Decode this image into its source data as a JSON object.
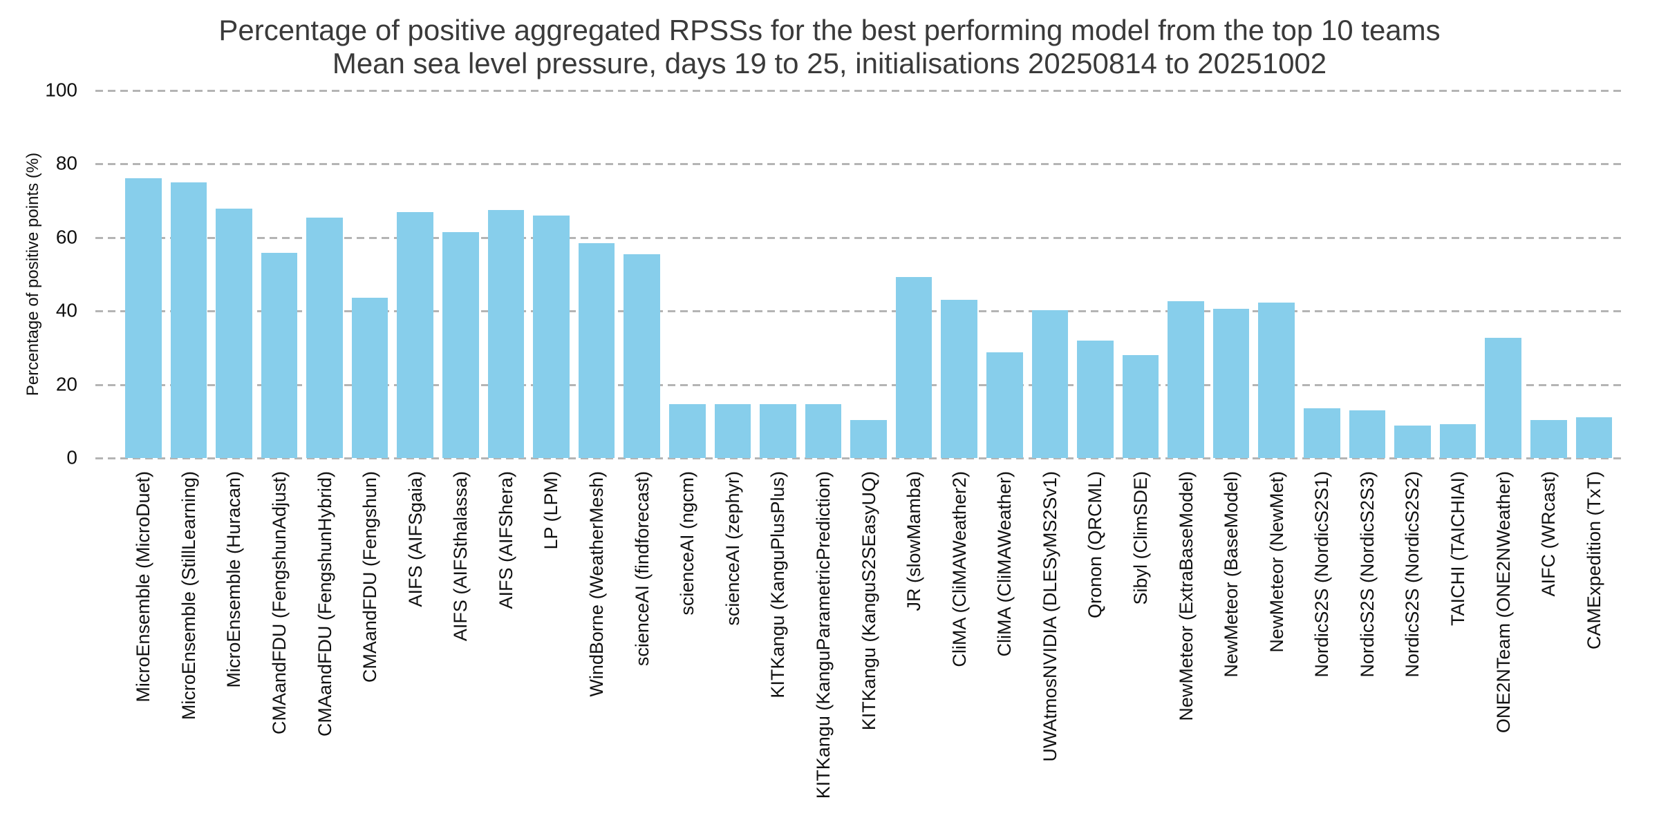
{
  "title": {
    "line1": "Percentage of positive aggregated RPSSs for the best performing model from the top 10 teams",
    "line2": "Mean sea level pressure, days 19 to 25, initialisations 20250814 to 20251002"
  },
  "colors": {
    "bar": "#87ceeb",
    "grid": "#b4b4b4",
    "title_text": "#3a3a3a",
    "axis_text": "#111111",
    "background": "#ffffff"
  },
  "chart_data": {
    "type": "bar",
    "title": "Percentage of positive aggregated RPSSs for the best performing model from the top 10 teams",
    "subtitle": "Mean sea level pressure, days 19 to 25, initialisations 20250814 to 20251002",
    "xlabel": "",
    "ylabel": "Percentage of positive points (%)",
    "ylim": [
      0,
      100
    ],
    "yticks": [
      0,
      20,
      40,
      60,
      80,
      100
    ],
    "grid": "horizontal-dashed",
    "legend": "none",
    "bar_color": "#87ceeb",
    "categories": [
      "MicroEnsemble (MicroDuet)",
      "MicroEnsemble (StillLearning)",
      "MicroEnsemble (Huracan)",
      "CMAandFDU (FengshunAdjust)",
      "CMAandFDU (FengshunHybrid)",
      "CMAandFDU (Fengshun)",
      "AIFS (AIFSgaia)",
      "AIFS (AIFSthalassa)",
      "AIFS (AIFShera)",
      "LP (LPM)",
      "WindBorne (WeatherMesh)",
      "scienceAI (findforecast)",
      "scienceAI (ngcm)",
      "scienceAI (zephyr)",
      "KITKangu (KanguPlusPlus)",
      "KITKangu (KanguParametricPrediction)",
      "KITKangu (KanguS2SEasyUQ)",
      "JR (slowMamba)",
      "CliMA (CliMAWeather2)",
      "CliMA (CliMAWeather)",
      "UWAtmosNVIDIA (DLESyMS2Sv1)",
      "Qronon (QRCML)",
      "Sibyl (ClimSDE)",
      "NewMeteor (ExtraBaseModel)",
      "NewMeteor (BaseModel)",
      "NewMeteor (NewMet)",
      "NordicS2S (NordicS2S1)",
      "NordicS2S (NordicS2S3)",
      "NordicS2S (NordicS2S2)",
      "TAICHI (TAICHIAI)",
      "ONE2NTeam (ONE2NWeather)",
      "AIFC (WRcast)",
      "CAMExpedition (TxT)"
    ],
    "values": [
      76.2,
      75.0,
      67.8,
      55.8,
      65.5,
      43.6,
      66.9,
      61.5,
      67.4,
      65.9,
      58.4,
      55.5,
      14.7,
      14.7,
      14.7,
      14.7,
      10.3,
      49.2,
      43.1,
      28.8,
      40.3,
      31.9,
      28.0,
      42.6,
      40.6,
      42.3,
      13.6,
      12.9,
      8.9,
      9.3,
      32.8,
      10.3,
      11.1
    ]
  }
}
